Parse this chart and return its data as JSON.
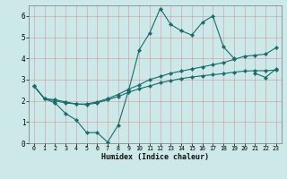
{
  "xlabel": "Humidex (Indice chaleur)",
  "x": [
    0,
    1,
    2,
    3,
    4,
    5,
    6,
    7,
    8,
    9,
    10,
    11,
    12,
    13,
    14,
    15,
    16,
    17,
    18,
    19,
    20,
    21,
    22,
    23
  ],
  "line1_y": [
    2.7,
    2.1,
    1.9,
    1.4,
    1.1,
    0.5,
    0.5,
    0.05,
    0.85,
    2.5,
    4.4,
    5.2,
    6.35,
    5.6,
    5.3,
    5.1,
    5.7,
    6.0,
    4.55,
    4.0,
    null,
    3.3,
    3.1,
    3.5
  ],
  "line2_y": [
    2.7,
    2.1,
    2.05,
    1.95,
    1.85,
    1.85,
    1.95,
    2.1,
    2.3,
    2.55,
    2.75,
    3.0,
    3.15,
    3.3,
    3.4,
    3.5,
    3.6,
    3.7,
    3.8,
    3.95,
    4.1,
    4.15,
    4.2,
    4.5
  ],
  "line3_y": [
    2.7,
    2.1,
    2.0,
    1.9,
    1.85,
    1.82,
    1.9,
    2.05,
    2.2,
    2.4,
    2.57,
    2.7,
    2.85,
    2.95,
    3.05,
    3.12,
    3.18,
    3.23,
    3.28,
    3.35,
    3.4,
    3.42,
    3.42,
    3.45
  ],
  "color": "#1a6b6b",
  "bg_color": "#cce8e8",
  "grid_color": "#b0d0d0",
  "ylim": [
    0,
    6.5
  ],
  "xlim": [
    -0.5,
    23.5
  ],
  "yticks": [
    0,
    1,
    2,
    3,
    4,
    5,
    6
  ],
  "xticks": [
    0,
    1,
    2,
    3,
    4,
    5,
    6,
    7,
    8,
    9,
    10,
    11,
    12,
    13,
    14,
    15,
    16,
    17,
    18,
    19,
    20,
    21,
    22,
    23
  ]
}
